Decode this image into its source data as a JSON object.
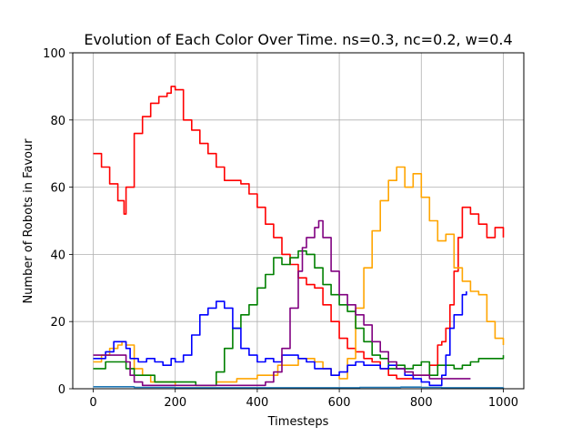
{
  "chart_data": {
    "type": "line",
    "title": "Evolution of Each Color Over Time. ns=0.3, nc=0.2, w=0.4",
    "xlabel": "Timesteps",
    "ylabel": "Number of Robots in Favour",
    "xlim": [
      -50,
      1050
    ],
    "ylim": [
      0,
      100
    ],
    "xticks": [
      0,
      200,
      400,
      600,
      800,
      1000
    ],
    "yticks": [
      0,
      20,
      40,
      60,
      80,
      100
    ],
    "grid": true,
    "series": [
      {
        "color": "#ff0000",
        "x": [
          0,
          20,
          40,
          60,
          75,
          80,
          100,
          120,
          140,
          160,
          180,
          190,
          200,
          220,
          240,
          260,
          280,
          300,
          320,
          340,
          360,
          380,
          400,
          420,
          440,
          460,
          480,
          500,
          520,
          540,
          560,
          580,
          600,
          620,
          640,
          660,
          680,
          700,
          720,
          740,
          760,
          780,
          800,
          820,
          840,
          850,
          860,
          870,
          880,
          890,
          900,
          920,
          940,
          960,
          980,
          1000
        ],
        "y": [
          70,
          66,
          61,
          56,
          52,
          60,
          76,
          81,
          85,
          87,
          88,
          90,
          89,
          80,
          77,
          73,
          70,
          66,
          62,
          62,
          61,
          58,
          54,
          49,
          45,
          40,
          37,
          33,
          31,
          30,
          25,
          20,
          15,
          12,
          11,
          9,
          8,
          6,
          4,
          3,
          3,
          4,
          4,
          7,
          13,
          14,
          18,
          25,
          35,
          45,
          54,
          52,
          49,
          45,
          48,
          45
        ]
      },
      {
        "color": "#ffa500",
        "x": [
          0,
          20,
          40,
          60,
          70,
          80,
          100,
          120,
          140,
          160,
          200,
          250,
          300,
          350,
          380,
          400,
          450,
          500,
          540,
          560,
          580,
          600,
          620,
          640,
          660,
          680,
          700,
          720,
          740,
          760,
          780,
          800,
          820,
          840,
          860,
          880,
          900,
          920,
          940,
          960,
          980,
          1000
        ],
        "y": [
          8,
          10,
          12,
          13,
          14,
          13,
          6,
          4,
          2,
          2,
          1,
          1,
          2,
          3,
          3,
          4,
          7,
          9,
          8,
          6,
          4,
          3,
          9,
          24,
          36,
          47,
          56,
          62,
          66,
          60,
          64,
          57,
          50,
          44,
          46,
          36,
          32,
          29,
          28,
          20,
          15,
          13
        ]
      },
      {
        "color": "#008000",
        "x": [
          0,
          30,
          60,
          80,
          100,
          150,
          200,
          250,
          280,
          300,
          320,
          340,
          360,
          380,
          400,
          420,
          440,
          460,
          480,
          500,
          520,
          540,
          560,
          580,
          600,
          620,
          640,
          660,
          680,
          700,
          720,
          740,
          760,
          780,
          800,
          820,
          840,
          860,
          880,
          900,
          920,
          940,
          960,
          980,
          1000
        ],
        "y": [
          6,
          8,
          8,
          6,
          4,
          2,
          2,
          1,
          1,
          5,
          12,
          18,
          22,
          25,
          30,
          34,
          39,
          37,
          39,
          41,
          40,
          36,
          31,
          28,
          25,
          23,
          18,
          14,
          10,
          9,
          6,
          7,
          6,
          7,
          8,
          4,
          7,
          7,
          6,
          7,
          8,
          9,
          9,
          9,
          10
        ]
      },
      {
        "color": "#0000ff",
        "x": [
          0,
          30,
          50,
          70,
          80,
          90,
          110,
          130,
          150,
          170,
          190,
          200,
          220,
          240,
          260,
          280,
          300,
          320,
          340,
          360,
          380,
          400,
          420,
          440,
          460,
          480,
          500,
          520,
          540,
          560,
          580,
          600,
          620,
          640,
          660,
          680,
          700,
          720,
          740,
          760,
          780,
          800,
          820,
          840,
          850,
          860,
          870,
          880,
          900,
          910
        ],
        "y": [
          9,
          11,
          14,
          14,
          12,
          9,
          8,
          9,
          8,
          7,
          9,
          8,
          10,
          16,
          22,
          24,
          26,
          24,
          18,
          12,
          10,
          8,
          9,
          8,
          10,
          10,
          9,
          8,
          6,
          6,
          4,
          5,
          7,
          8,
          7,
          7,
          6,
          7,
          6,
          4,
          3,
          2,
          1,
          1,
          4,
          10,
          18,
          22,
          28,
          29
        ]
      },
      {
        "color": "#800080",
        "x": [
          0,
          30,
          60,
          80,
          90,
          100,
          120,
          140,
          160,
          200,
          260,
          300,
          360,
          400,
          420,
          440,
          460,
          480,
          500,
          510,
          520,
          540,
          550,
          560,
          580,
          600,
          620,
          640,
          660,
          680,
          700,
          720,
          740,
          760,
          780,
          800,
          820,
          840,
          860,
          880,
          900,
          920
        ],
        "y": [
          10,
          10,
          10,
          8,
          4,
          2,
          1,
          1,
          1,
          1,
          1,
          1,
          1,
          1,
          2,
          5,
          12,
          24,
          35,
          42,
          45,
          48,
          50,
          45,
          35,
          28,
          25,
          22,
          19,
          14,
          11,
          8,
          6,
          5,
          4,
          4,
          3,
          3,
          3,
          3,
          3,
          3
        ]
      },
      {
        "color": "#1f77b4",
        "x": [
          0,
          100,
          200,
          300,
          400,
          500,
          600,
          650,
          700,
          750,
          800,
          850,
          900,
          950,
          1000
        ],
        "y": [
          0.6,
          0.4,
          0.3,
          0.3,
          0.3,
          0.3,
          0.3,
          0.4,
          0.4,
          0.5,
          0.4,
          0.3,
          0.3,
          0.3,
          0.4
        ]
      }
    ]
  }
}
